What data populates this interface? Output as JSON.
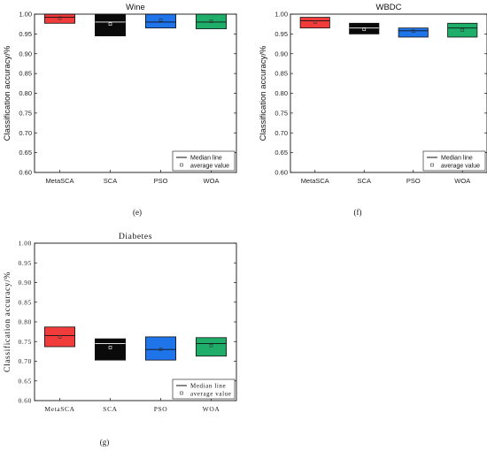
{
  "colors": {
    "MetaSCA": "#f23b3b",
    "SCA": "#0a0a0a",
    "PSO": "#1f74ea",
    "WOA": "#1fae6a"
  },
  "chart_data": [
    {
      "type": "box",
      "panel_label": "(e)",
      "title": "Wine",
      "ylabel": "Classification accuracy/%",
      "ylim": [
        0.6,
        1.0
      ],
      "yticks": [
        "0.60",
        "0.65",
        "0.70",
        "0.75",
        "0.80",
        "0.85",
        "0.90",
        "0.95",
        "1.00"
      ],
      "categories": [
        "MetaSCA",
        "SCA",
        "PSO",
        "WOA"
      ],
      "boxes": [
        {
          "q1": 0.977,
          "median": 0.992,
          "q3": 1.0,
          "mean": 0.99
        },
        {
          "q1": 0.945,
          "median": 0.98,
          "q3": 1.0,
          "mean": 0.975
        },
        {
          "q1": 0.965,
          "median": 0.98,
          "q3": 1.0,
          "mean": 0.985
        },
        {
          "q1": 0.963,
          "median": 0.98,
          "q3": 1.0,
          "mean": 0.982
        }
      ],
      "legend": {
        "position": "bottom-right",
        "items": [
          "Median line",
          "average value"
        ]
      }
    },
    {
      "type": "box",
      "panel_label": "(f)",
      "title": "WBDC",
      "ylabel": "Classification accuracy/%",
      "ylim": [
        0.6,
        1.0
      ],
      "yticks": [
        "0.60",
        "0.65",
        "0.70",
        "0.75",
        "0.80",
        "0.85",
        "0.90",
        "0.95",
        "1.00"
      ],
      "categories": [
        "MetaSCA",
        "SCA",
        "PSO",
        "WOA"
      ],
      "boxes": [
        {
          "q1": 0.965,
          "median": 0.983,
          "q3": 0.992,
          "mean": 0.98
        },
        {
          "q1": 0.95,
          "median": 0.965,
          "q3": 0.977,
          "mean": 0.962
        },
        {
          "q1": 0.942,
          "median": 0.958,
          "q3": 0.965,
          "mean": 0.957
        },
        {
          "q1": 0.942,
          "median": 0.965,
          "q3": 0.977,
          "mean": 0.96
        }
      ],
      "legend": {
        "position": "bottom-right",
        "items": [
          "Median line",
          "average value"
        ]
      }
    },
    {
      "type": "box",
      "panel_label": "(g)",
      "title": "Diabetes",
      "ylabel": "Classification accuracy/%",
      "ylim": [
        0.6,
        1.0
      ],
      "yticks": [
        "0.60",
        "0.65",
        "0.70",
        "0.75",
        "0.80",
        "0.85",
        "0.90",
        "0.95",
        "1.00"
      ],
      "categories": [
        "MetaSCA",
        "SCA",
        "PSO",
        "WOA"
      ],
      "boxes": [
        {
          "q1": 0.737,
          "median": 0.765,
          "q3": 0.787,
          "mean": 0.762
        },
        {
          "q1": 0.703,
          "median": 0.745,
          "q3": 0.757,
          "mean": 0.735
        },
        {
          "q1": 0.703,
          "median": 0.73,
          "q3": 0.762,
          "mean": 0.73
        },
        {
          "q1": 0.713,
          "median": 0.745,
          "q3": 0.76,
          "mean": 0.74
        }
      ],
      "legend": {
        "position": "bottom-right",
        "items": [
          "Median line",
          "average value"
        ]
      }
    }
  ]
}
